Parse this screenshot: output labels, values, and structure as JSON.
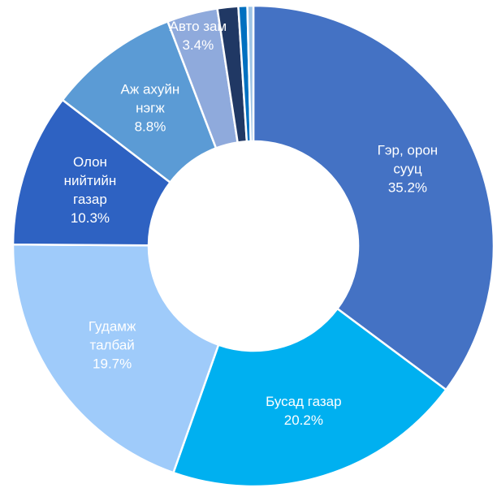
{
  "chart_data": {
    "type": "donut",
    "categories": [
      "Гэр, орон сууц",
      "Бусад газар",
      "Гудамж талбай",
      "Олон нийтийн газар",
      "Аж ахуйн нэгж",
      "Авто зам",
      null,
      null,
      null
    ],
    "values": [
      35.2,
      20.2,
      19.7,
      10.3,
      8.8,
      3.4,
      1.4,
      0.6,
      0.4
    ],
    "value_labels": [
      "35.2%",
      "20.2%",
      "19.7%",
      "10.3%",
      "8.8%",
      "3.4%",
      null,
      null,
      null
    ],
    "colors": [
      "#4472c4",
      "#00b0f0",
      "#9fcbfa",
      "#2e62c2",
      "#5b9bd5",
      "#8faadc",
      "#203864",
      "#0070c0",
      "#9dc3e6"
    ]
  }
}
